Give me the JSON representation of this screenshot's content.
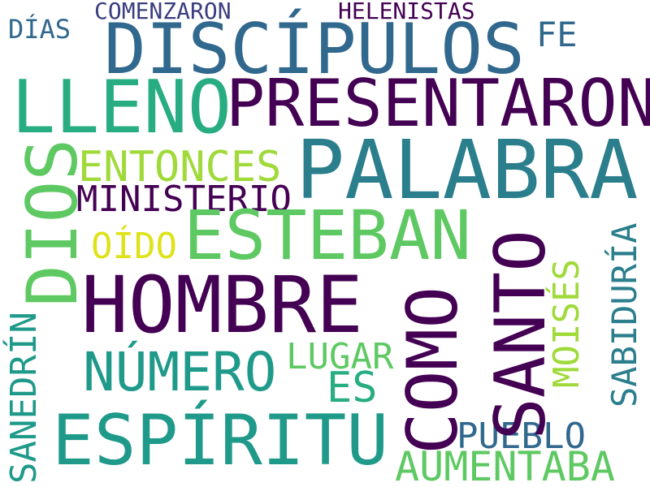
{
  "words": {
    "comenzaron": "COMENZARON",
    "helenistas": "HELENISTAS",
    "dias_small": "DÍAS",
    "discipulos": "DISCÍPULOS",
    "fe": "FE",
    "lleno": "LLENO",
    "presentaron": "PRESENTARON",
    "entonces": "ENTONCES",
    "palabra": "PALABRA",
    "dios": "DIOS",
    "ministerio": "MINISTERIO",
    "oido": "OÍDO",
    "esteban": "ESTEBAN",
    "hombre": "HOMBRE",
    "santo": "SANTO",
    "como": "COMO",
    "sabiduria": "SABIDURÍA",
    "moises": "MOISÉS",
    "sanedrin": "SANEDRÍN",
    "lugar": "LUGAR",
    "numero": "NÚMERO",
    "es": "ES",
    "espiritu": "ESPÍRITU",
    "pueblo": "PUEBLO",
    "aumentaba": "AUMENTABA"
  },
  "colors": [
    "#440154",
    "#3b3e80",
    "#31688e",
    "#2b7e8c",
    "#1f9a8a",
    "#27ad81",
    "#5ec962",
    "#9fda3a",
    "#dde318"
  ]
}
